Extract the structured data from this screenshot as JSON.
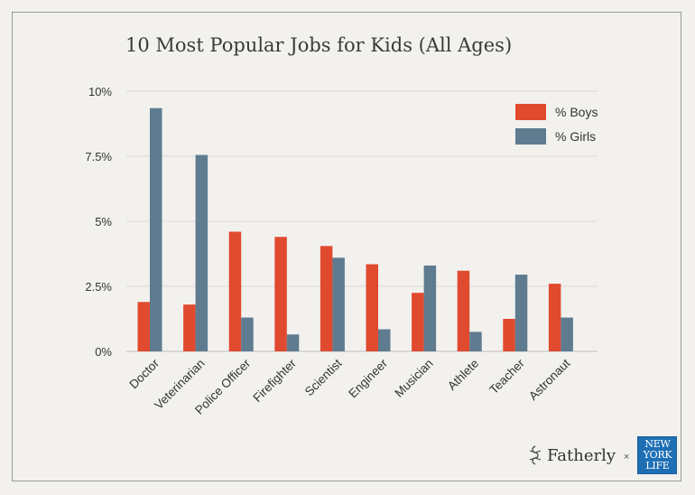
{
  "chart_data": {
    "type": "bar",
    "title": "10 Most Popular Jobs for Kids (All Ages)",
    "xlabel": "",
    "ylabel": "",
    "ylim": [
      0,
      10
    ],
    "y_ticks": [
      0,
      2.5,
      5,
      7.5,
      10
    ],
    "y_tick_labels": [
      "0%",
      "2.5%",
      "5%",
      "7.5%",
      "10%"
    ],
    "grid": true,
    "legend_position": "top-right",
    "categories": [
      "Doctor",
      "Veterinarian",
      "Police Officer",
      "Firefighter",
      "Scientist",
      "Engineer",
      "Musician",
      "Athlete",
      "Teacher",
      "Astronaut"
    ],
    "series": [
      {
        "name": "% Boys",
        "color": "#e04a2e",
        "values": [
          1.9,
          1.8,
          4.6,
          4.4,
          4.05,
          3.35,
          2.25,
          3.1,
          1.25,
          2.6
        ]
      },
      {
        "name": "% Girls",
        "color": "#5f7b90",
        "values": [
          9.35,
          7.55,
          1.3,
          0.65,
          3.6,
          0.85,
          3.3,
          0.75,
          2.95,
          1.3
        ]
      }
    ]
  },
  "branding": {
    "fatherly": "Fatherly",
    "times": "×",
    "nyl_lines": [
      "NEW",
      "YORK",
      "LIFE"
    ],
    "nyl_color": "#1f6fb5"
  }
}
